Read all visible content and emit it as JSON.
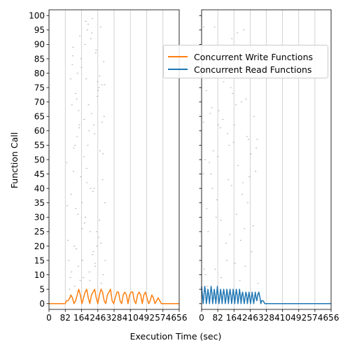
{
  "chart_data": {
    "type": "line",
    "xlabel": "Execution Time (sec)",
    "ylabel": "Function Call",
    "xlim": [
      0,
      656
    ],
    "ylim": [
      -2,
      102
    ],
    "xticks": [
      0,
      82,
      164,
      246,
      328,
      410,
      492,
      574,
      656
    ],
    "yticks": [
      0,
      5,
      10,
      15,
      20,
      25,
      30,
      35,
      40,
      45,
      50,
      55,
      60,
      65,
      70,
      75,
      80,
      85,
      90,
      95,
      100
    ],
    "grid": "vertical",
    "legend_position": "upper-right",
    "panels": [
      {
        "name": "left",
        "series": [
          {
            "name": "Concurrent Write Functions",
            "color": "#ff7f0e",
            "x": [
              0,
              60,
              82,
              88,
              96,
              105,
              110,
              118,
              126,
              134,
              142,
              150,
              158,
              166,
              174,
              182,
              190,
              198,
              206,
              214,
              222,
              230,
              238,
              246,
              254,
              262,
              270,
              278,
              286,
              294,
              302,
              310,
              318,
              326,
              334,
              342,
              350,
              358,
              366,
              374,
              382,
              390,
              398,
              406,
              414,
              422,
              430,
              438,
              446,
              454,
              462,
              470,
              478,
              486,
              494,
              502,
              510,
              518,
              526,
              534,
              542,
              550,
              558,
              566,
              580,
              656
            ],
            "y": [
              0,
              0,
              0,
              1,
              1,
              2,
              3,
              2,
              0,
              1,
              3,
              5,
              3,
              0,
              2,
              4,
              5,
              2,
              0,
              3,
              4,
              5,
              2,
              0,
              3,
              5,
              4,
              1,
              0,
              3,
              4,
              5,
              1,
              0,
              2,
              4,
              4,
              1,
              0,
              3,
              4,
              3,
              0,
              3,
              4,
              4,
              1,
              0,
              3,
              4,
              3,
              0,
              3,
              4,
              2,
              0,
              1,
              3,
              2,
              0,
              1,
              2,
              1,
              0,
              0,
              0
            ]
          }
        ],
        "scatter_points": [
          [
            86,
            49
          ],
          [
            88,
            34
          ],
          [
            92,
            22
          ],
          [
            96,
            15
          ],
          [
            100,
            5
          ],
          [
            104,
            9
          ],
          [
            106,
            78
          ],
          [
            108,
            38
          ],
          [
            110,
            11
          ],
          [
            112,
            69
          ],
          [
            114,
            83
          ],
          [
            116,
            86
          ],
          [
            118,
            89
          ],
          [
            120,
            46
          ],
          [
            122,
            54
          ],
          [
            124,
            20
          ],
          [
            126,
            6
          ],
          [
            128,
            55
          ],
          [
            130,
            73
          ],
          [
            132,
            33
          ],
          [
            134,
            19
          ],
          [
            136,
            71
          ],
          [
            138,
            58
          ],
          [
            140,
            80
          ],
          [
            142,
            31
          ],
          [
            144,
            13
          ],
          [
            146,
            67
          ],
          [
            148,
            61
          ],
          [
            150,
            62
          ],
          [
            152,
            93
          ],
          [
            154,
            8
          ],
          [
            156,
            44
          ],
          [
            158,
            85
          ],
          [
            160,
            82
          ],
          [
            162,
            35
          ],
          [
            164,
            26
          ],
          [
            166,
            15
          ],
          [
            170,
            9
          ],
          [
            172,
            51
          ],
          [
            174,
            64
          ],
          [
            176,
            28
          ],
          [
            178,
            90
          ],
          [
            180,
            30
          ],
          [
            182,
            98
          ],
          [
            184,
            78
          ],
          [
            186,
            47
          ],
          [
            188,
            42
          ],
          [
            190,
            95
          ],
          [
            192,
            55
          ],
          [
            194,
            97
          ],
          [
            196,
            69
          ],
          [
            198,
            60
          ],
          [
            200,
            11
          ],
          [
            202,
            8
          ],
          [
            204,
            25
          ],
          [
            206,
            40
          ],
          [
            208,
            92
          ],
          [
            210,
            66
          ],
          [
            212,
            94
          ],
          [
            214,
            99
          ],
          [
            216,
            17
          ],
          [
            218,
            39
          ],
          [
            220,
            18
          ],
          [
            222,
            62
          ],
          [
            224,
            40
          ],
          [
            226,
            59
          ],
          [
            228,
            14
          ],
          [
            230,
            13
          ],
          [
            232,
            87
          ],
          [
            234,
            88
          ],
          [
            236,
            25
          ],
          [
            238,
            20
          ],
          [
            240,
            72
          ],
          [
            242,
            77
          ],
          [
            244,
            74
          ],
          [
            246,
            23
          ],
          [
            248,
            75
          ],
          [
            250,
            29
          ],
          [
            252,
            79
          ],
          [
            254,
            53
          ],
          [
            256,
            96
          ],
          [
            258,
            21
          ],
          [
            260,
            7
          ],
          [
            262,
            76
          ],
          [
            264,
            63
          ],
          [
            266,
            43
          ],
          [
            268,
            52
          ],
          [
            270,
            10
          ],
          [
            272,
            84
          ],
          [
            274,
            65
          ],
          [
            276,
            76
          ],
          [
            278,
            35
          ],
          [
            280,
            15
          ]
        ]
      },
      {
        "name": "right",
        "series": [
          {
            "name": "Concurrent Read Functions",
            "color": "#1f77b4",
            "x": [
              0,
              4,
              8,
              12,
              16,
              20,
              24,
              28,
              32,
              36,
              40,
              44,
              48,
              52,
              56,
              60,
              64,
              68,
              72,
              76,
              80,
              84,
              88,
              92,
              96,
              100,
              104,
              108,
              112,
              116,
              120,
              124,
              128,
              132,
              136,
              140,
              144,
              148,
              152,
              156,
              160,
              164,
              168,
              172,
              176,
              180,
              184,
              188,
              192,
              196,
              200,
              204,
              208,
              212,
              216,
              220,
              224,
              228,
              232,
              236,
              240,
              244,
              248,
              252,
              256,
              260,
              264,
              268,
              272,
              276,
              280,
              284,
              290,
              296,
              300,
              304,
              312,
              320,
              656
            ],
            "y": [
              6,
              3,
              0,
              3,
              6,
              4,
              0,
              2,
              5,
              3,
              0,
              3,
              6,
              4,
              0,
              2,
              5,
              3,
              0,
              3,
              6,
              3,
              0,
              2,
              5,
              3,
              0,
              3,
              5,
              3,
              0,
              2,
              5,
              3,
              0,
              3,
              5,
              3,
              0,
              2,
              5,
              3,
              0,
              3,
              5,
              3,
              0,
              2,
              5,
              3,
              0,
              3,
              4,
              2,
              0,
              2,
              4,
              3,
              0,
              2,
              4,
              2,
              0,
              2,
              4,
              2,
              0,
              2,
              4,
              2,
              1,
              3,
              4,
              2,
              0,
              1,
              1,
              0,
              0
            ]
          }
        ],
        "scatter_points": [
          [
            4,
            45
          ],
          [
            6,
            63
          ],
          [
            8,
            96
          ],
          [
            10,
            12
          ],
          [
            12,
            5
          ],
          [
            14,
            50
          ],
          [
            16,
            10
          ],
          [
            18,
            2
          ],
          [
            20,
            74
          ],
          [
            22,
            33
          ],
          [
            26,
            6
          ],
          [
            30,
            25
          ],
          [
            36,
            49
          ],
          [
            40,
            66
          ],
          [
            44,
            45
          ],
          [
            48,
            68
          ],
          [
            52,
            40
          ],
          [
            56,
            53
          ],
          [
            60,
            2
          ],
          [
            62,
            96
          ],
          [
            66,
            12
          ],
          [
            70,
            30
          ],
          [
            74,
            36
          ],
          [
            78,
            51
          ],
          [
            80,
            62
          ],
          [
            84,
            67
          ],
          [
            88,
            87
          ],
          [
            92,
            61
          ],
          [
            94,
            29
          ],
          [
            96,
            9
          ],
          [
            100,
            83
          ],
          [
            104,
            64
          ],
          [
            108,
            77
          ],
          [
            112,
            88
          ],
          [
            116,
            81
          ],
          [
            120,
            21
          ],
          [
            124,
            15
          ],
          [
            128,
            59
          ],
          [
            132,
            43
          ],
          [
            136,
            55
          ],
          [
            140,
            24
          ],
          [
            144,
            75
          ],
          [
            148,
            41
          ],
          [
            150,
            92
          ],
          [
            154,
            73
          ],
          [
            158,
            56
          ],
          [
            162,
            62
          ],
          [
            166,
            14
          ],
          [
            170,
            69
          ],
          [
            174,
            31
          ],
          [
            178,
            94
          ],
          [
            182,
            48
          ],
          [
            186,
            86
          ],
          [
            190,
            8
          ],
          [
            194,
            22
          ],
          [
            198,
            70
          ],
          [
            202,
            38
          ],
          [
            206,
            42
          ],
          [
            210,
            95
          ],
          [
            214,
            26
          ],
          [
            218,
            13
          ],
          [
            222,
            71
          ],
          [
            226,
            58
          ],
          [
            230,
            35
          ],
          [
            234,
            57
          ],
          [
            238,
            44
          ],
          [
            242,
            89
          ],
          [
            246,
            52
          ],
          [
            250,
            18
          ],
          [
            254,
            79
          ],
          [
            258,
            27
          ],
          [
            262,
            65
          ],
          [
            266,
            80
          ],
          [
            270,
            46
          ],
          [
            274,
            54
          ],
          [
            278,
            57
          ],
          [
            282,
            7
          ],
          [
            286,
            3
          ]
        ]
      }
    ]
  }
}
